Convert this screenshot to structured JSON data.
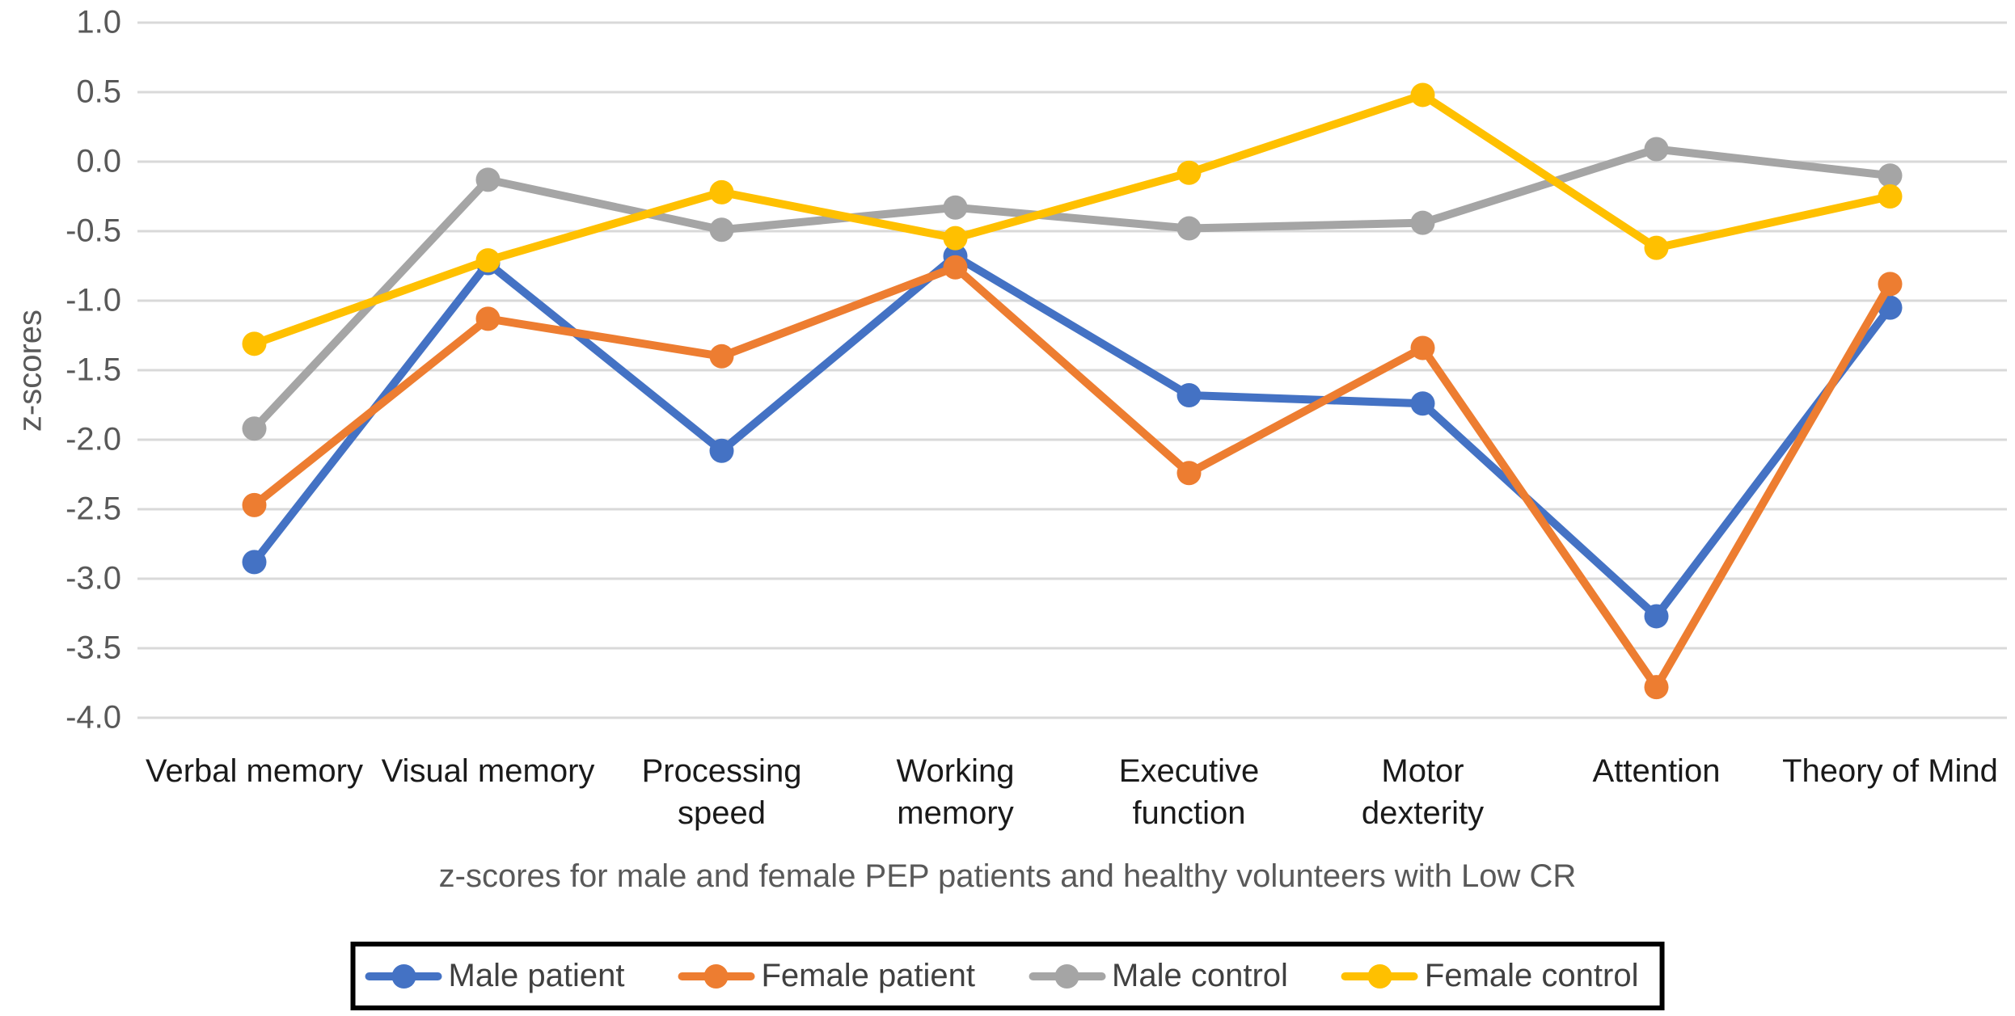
{
  "chart_data": {
    "type": "line",
    "title": "",
    "ylabel": "z-scores",
    "xlabel": "",
    "caption": "z-scores for male and female PEP patients and healthy volunteers with Low CR",
    "categories": [
      "Verbal memory",
      "Visual memory",
      "Processing speed",
      "Working memory",
      "Executive function",
      "Motor dexterity",
      "Attention",
      "Theory of Mind"
    ],
    "category_label_lines": [
      [
        "Verbal memory"
      ],
      [
        "Visual memory"
      ],
      [
        "Processing",
        "speed"
      ],
      [
        "Working",
        "memory"
      ],
      [
        "Executive",
        "function"
      ],
      [
        "Motor",
        "dexterity"
      ],
      [
        "Attention"
      ],
      [
        "Theory of Mind"
      ]
    ],
    "series": [
      {
        "name": "Male patient",
        "color": "#4472C4",
        "values": [
          -2.88,
          -0.73,
          -2.08,
          -0.68,
          -1.68,
          -1.74,
          -3.27,
          -1.05
        ]
      },
      {
        "name": "Female patient",
        "color": "#ED7D31",
        "values": [
          -2.47,
          -1.13,
          -1.4,
          -0.76,
          -2.24,
          -1.34,
          -3.78,
          -0.88
        ]
      },
      {
        "name": "Male control",
        "color": "#A5A5A5",
        "values": [
          -1.92,
          -0.13,
          -0.49,
          -0.33,
          -0.48,
          -0.44,
          0.09,
          -0.1
        ]
      },
      {
        "name": "Female control",
        "color": "#FFC000",
        "values": [
          -1.31,
          -0.71,
          -0.22,
          -0.55,
          -0.08,
          0.48,
          -0.62,
          -0.25
        ]
      }
    ],
    "ylim": [
      -4.0,
      1.0
    ],
    "ytick_step": 0.5,
    "ytick_labels": [
      "1.0",
      "0.5",
      "0.0",
      "-0.5",
      "-1.0",
      "-1.5",
      "-2.0",
      "-2.5",
      "-3.0",
      "-3.5",
      "-4.0"
    ],
    "grid": "horizontal",
    "gridline_color": "#D9D9D9",
    "legend_position": "bottom",
    "marker": "circle",
    "line_width": 10,
    "marker_radius": 15
  }
}
